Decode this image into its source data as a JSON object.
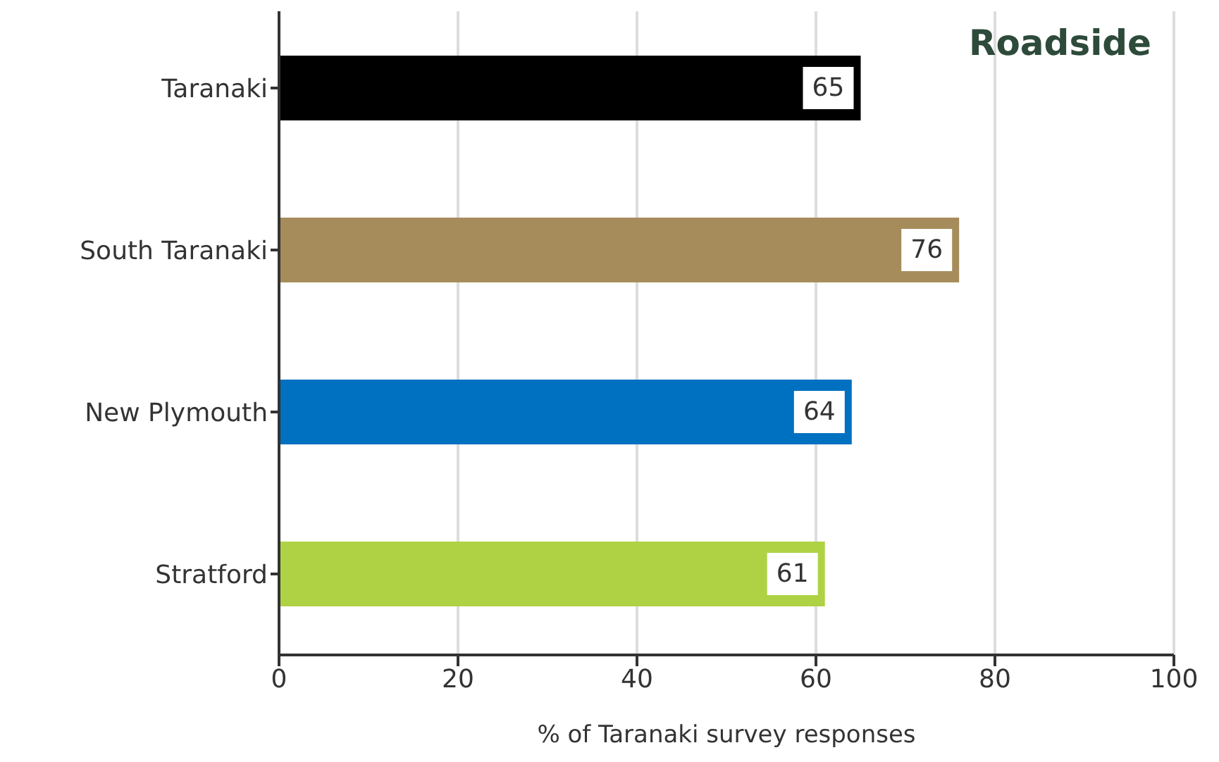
{
  "chart_data": {
    "type": "bar",
    "orientation": "horizontal",
    "title": "Roadside",
    "xlabel": "% of Taranaki survey responses",
    "categories": [
      "Taranaki",
      "South Taranaki",
      "New Plymouth",
      "Stratford"
    ],
    "values": [
      65,
      76,
      64,
      61
    ],
    "colors": [
      "#000000",
      "#a68c5a",
      "#0070c0",
      "#aed244"
    ],
    "xlim": [
      0,
      100
    ],
    "xticks": [
      0,
      20,
      40,
      60,
      80,
      100
    ],
    "grid": "x",
    "data_labels": true
  }
}
